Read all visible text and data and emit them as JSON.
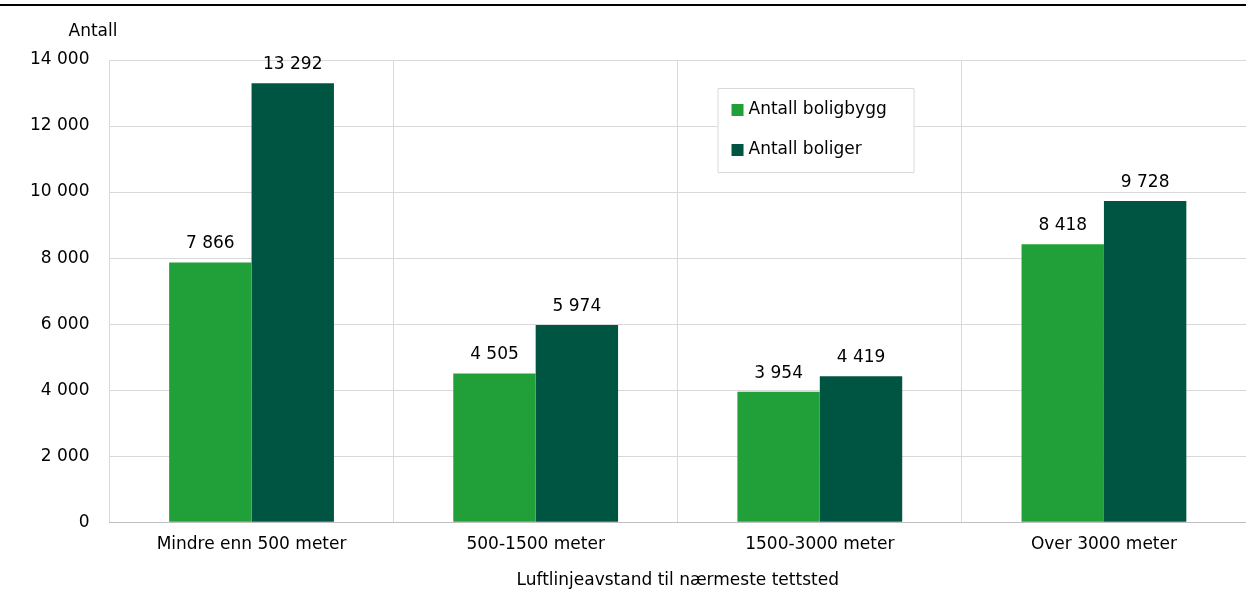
{
  "chart_data": {
    "type": "bar",
    "ylabel": "Antall",
    "xlabel": "Luftlinjeavstand til nærmeste tettsted",
    "categories": [
      "Mindre enn 500 meter",
      "500-1500 meter",
      "1500-3000 meter",
      "Over 3000 meter"
    ],
    "series": [
      {
        "name": "Antall boligbygg",
        "color": "#21a03a",
        "values": [
          7866,
          4505,
          3954,
          8418
        ],
        "value_labels": [
          "7 866",
          "4 505",
          "3 954",
          "8 418"
        ]
      },
      {
        "name": "Antall boliger",
        "color": "#005442",
        "values": [
          13292,
          5974,
          4419,
          9728
        ],
        "value_labels": [
          "13 292",
          "5 974",
          "4 419",
          "9 728"
        ]
      }
    ],
    "ylim": [
      0,
      14000
    ],
    "yticks": [
      {
        "value": 0,
        "label": "0"
      },
      {
        "value": 2000,
        "label": "2 000"
      },
      {
        "value": 4000,
        "label": "4 000"
      },
      {
        "value": 6000,
        "label": "6 000"
      },
      {
        "value": 8000,
        "label": "8 000"
      },
      {
        "value": 10000,
        "label": "10 000"
      },
      {
        "value": 12000,
        "label": "12 000"
      },
      {
        "value": 14000,
        "label": "14 000"
      }
    ],
    "grid": true,
    "legend": "top"
  }
}
